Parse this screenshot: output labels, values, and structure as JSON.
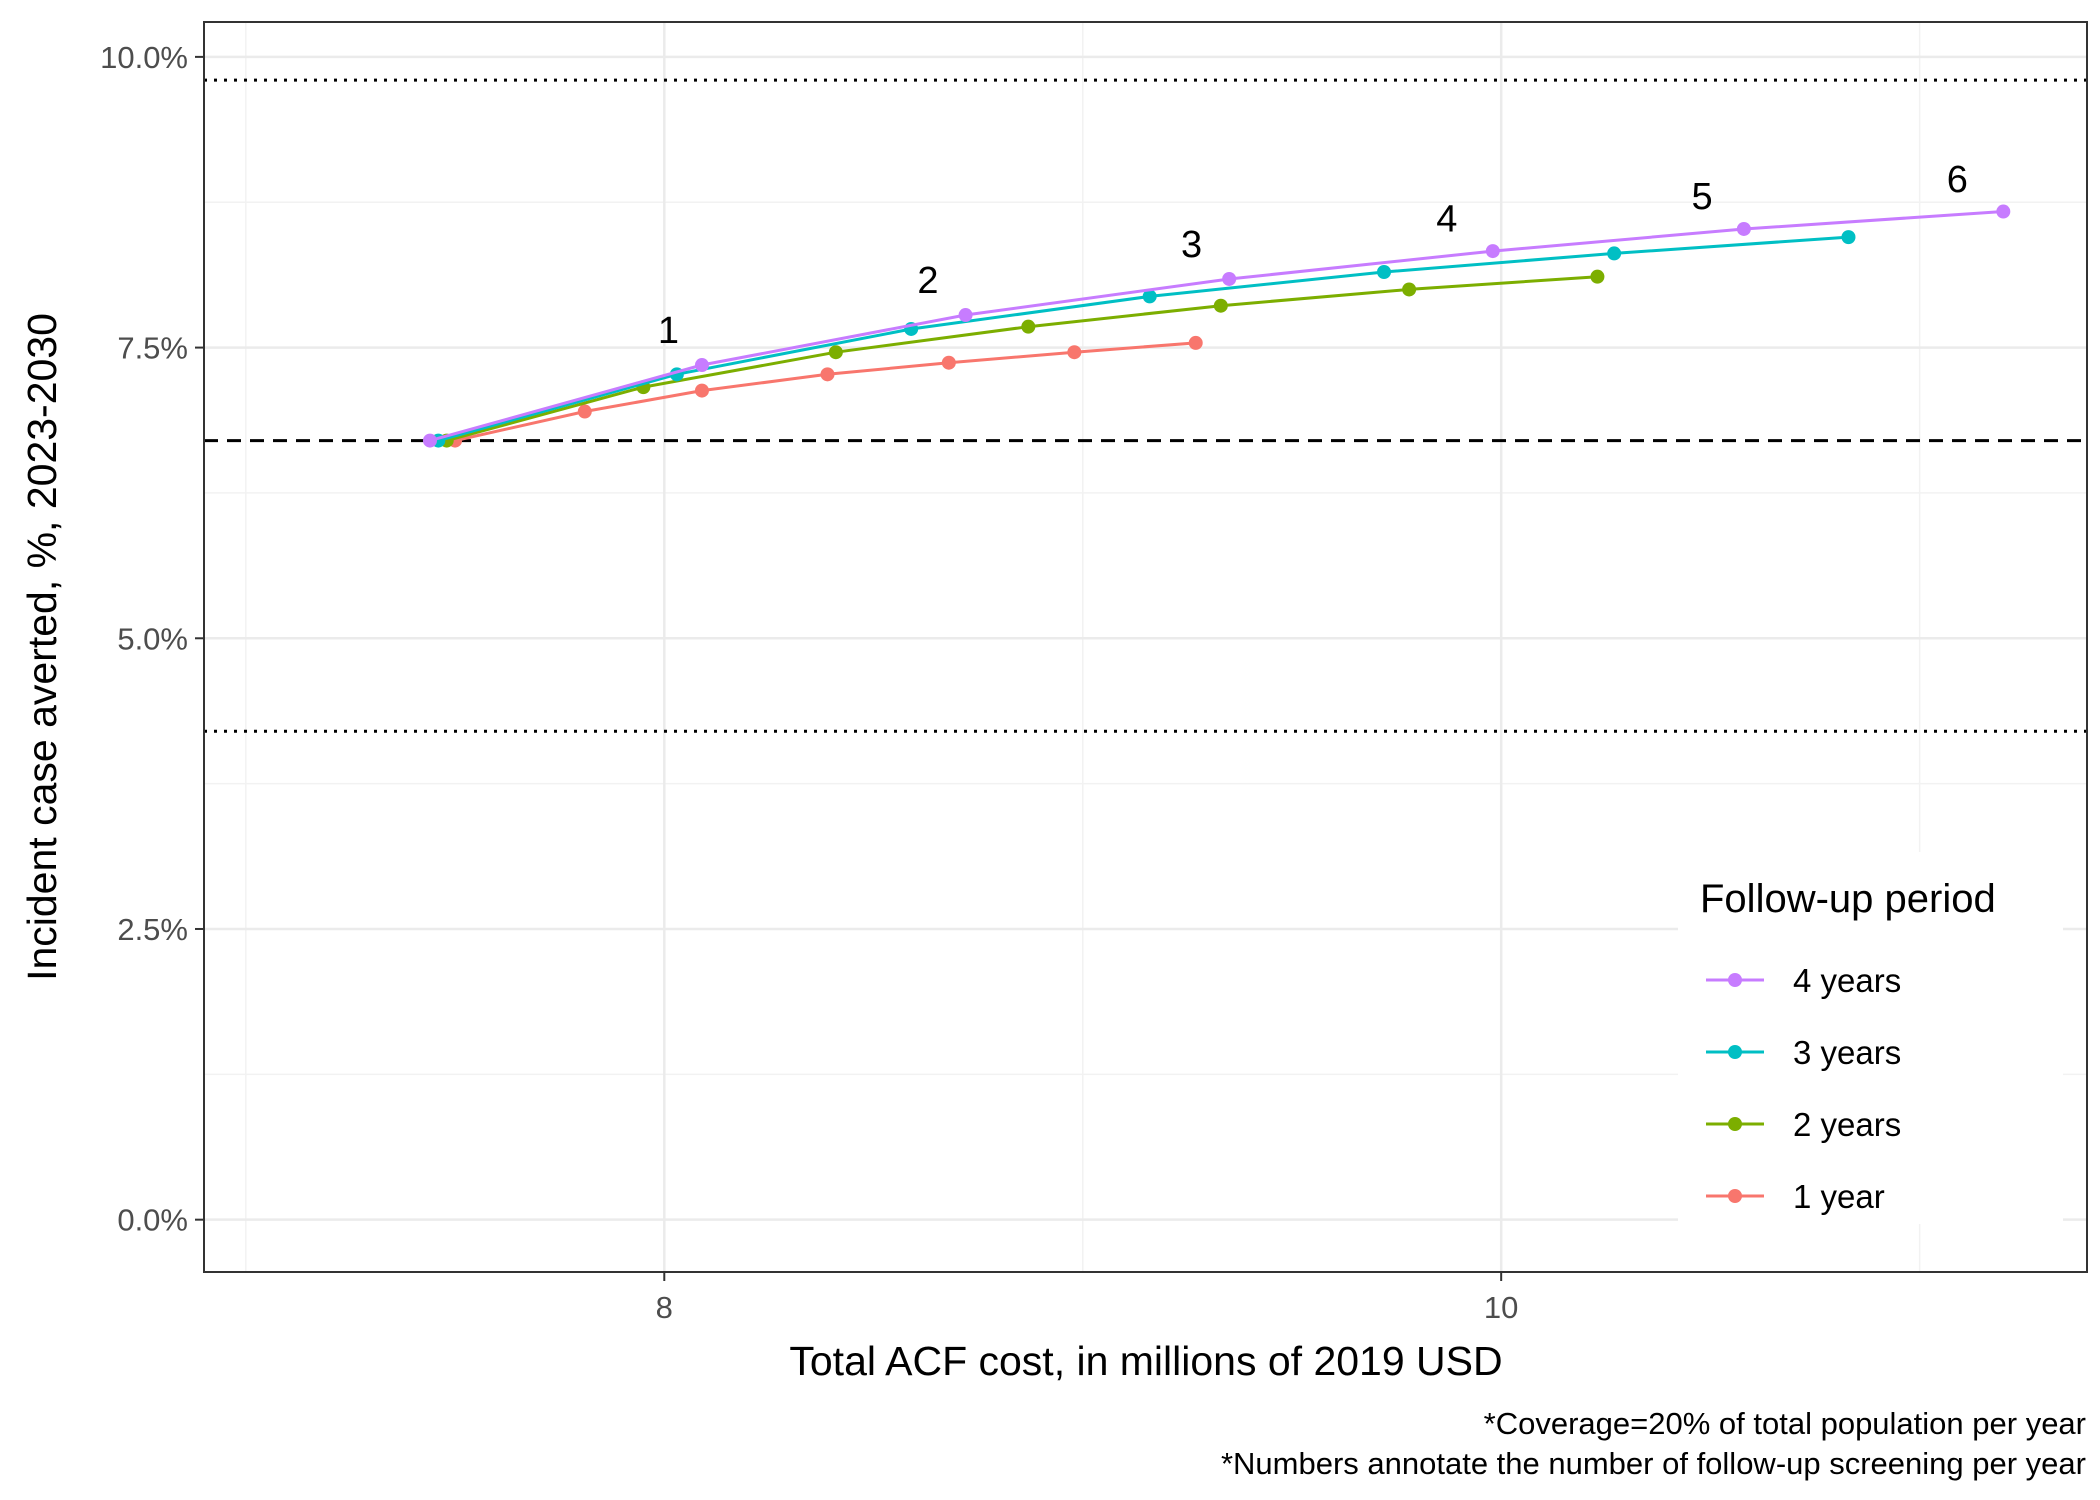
{
  "chart_data": {
    "type": "line",
    "xlabel": "Total ACF cost, in millions of 2019 USD",
    "ylabel": "Incident case averted, %, 2023-2030",
    "xlim": [
      6.9,
      11.4
    ],
    "ylim": [
      -0.45,
      10.3
    ],
    "x_ticks": [
      8,
      10
    ],
    "x_tick_labels": [
      "8",
      "10"
    ],
    "y_ticks": [
      0,
      2.5,
      5,
      7.5,
      10
    ],
    "y_tick_labels": [
      "0.0%",
      "2.5%",
      "5.0%",
      "7.5%",
      "10.0%"
    ],
    "grid": "major and minor",
    "reference_lines": [
      {
        "style": "dashed",
        "y": 6.7
      },
      {
        "style": "dotted",
        "y": 9.8
      },
      {
        "style": "dotted",
        "y": 4.2
      }
    ],
    "series": [
      {
        "name": "4 years",
        "color": "#C77CFF",
        "x": [
          7.44,
          8.09,
          8.72,
          9.35,
          9.98,
          10.58,
          11.2
        ],
        "y": [
          6.7,
          7.35,
          7.78,
          8.09,
          8.33,
          8.52,
          8.67
        ]
      },
      {
        "name": "3 years",
        "color": "#00BFC4",
        "x": [
          7.46,
          8.03,
          8.59,
          9.16,
          9.72,
          10.27,
          10.83
        ],
        "y": [
          6.7,
          7.27,
          7.66,
          7.94,
          8.15,
          8.31,
          8.45
        ]
      },
      {
        "name": "2 years",
        "color": "#7CAE00",
        "x": [
          7.48,
          7.95,
          8.41,
          8.87,
          9.33,
          9.78,
          10.23
        ],
        "y": [
          6.7,
          7.16,
          7.46,
          7.68,
          7.86,
          8.0,
          8.11
        ]
      },
      {
        "name": "1 year",
        "color": "#F8766D",
        "x": [
          7.5,
          7.81,
          8.09,
          8.39,
          8.68,
          8.98,
          9.27
        ],
        "y": [
          6.7,
          6.95,
          7.13,
          7.27,
          7.37,
          7.46,
          7.54
        ]
      }
    ],
    "annotations": [
      {
        "text": "1",
        "x": 8.01,
        "y": 7.54
      },
      {
        "text": "2",
        "x": 8.63,
        "y": 7.97
      },
      {
        "text": "3",
        "x": 9.26,
        "y": 8.28
      },
      {
        "text": "4",
        "x": 9.87,
        "y": 8.5
      },
      {
        "text": "5",
        "x": 10.48,
        "y": 8.69
      },
      {
        "text": "6",
        "x": 11.09,
        "y": 8.84
      }
    ],
    "legend": {
      "title": "Follow-up period",
      "placement": "bottom-right",
      "entries": [
        "4 years",
        "3 years",
        "2 years",
        "1 year"
      ]
    },
    "captions": [
      "*Coverage=20% of total population per year",
      "*Numbers annotate the number of follow-up screening per year"
    ]
  }
}
